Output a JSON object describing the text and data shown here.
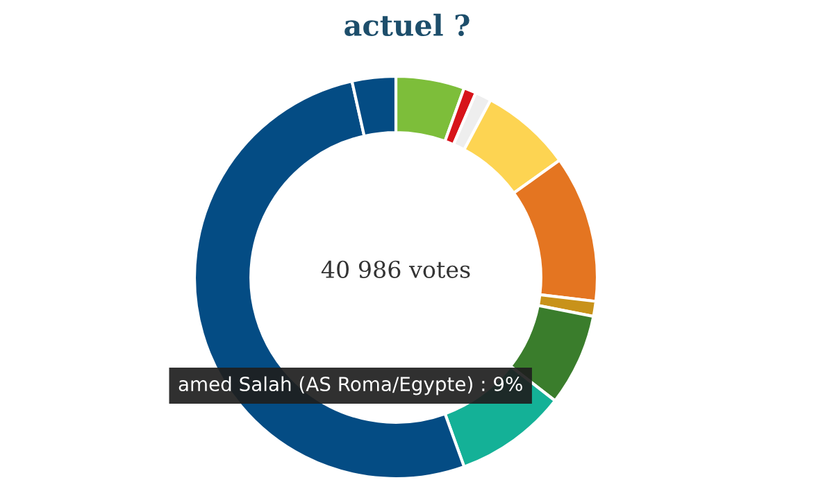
{
  "chart_data": {
    "type": "donut",
    "title": "actuel ?",
    "categories": [
      null,
      null,
      null,
      null,
      null,
      null,
      null,
      null,
      null,
      null
    ],
    "values": [
      5.5,
      1,
      1.3,
      7.3,
      11.8,
      1.2,
      7.4,
      9,
      52,
      3.5
    ],
    "colors": [
      "#7dbe3a",
      "#d7141a",
      "#eeeeee",
      "#fdd452",
      "#e47521",
      "#c8921a",
      "#3a7d2c",
      "#14b197",
      "#044c84",
      "#044c84"
    ],
    "annotations": [
      "40 986 votes",
      "amed Salah (AS Roma/Egypte) : 9%"
    ]
  }
}
